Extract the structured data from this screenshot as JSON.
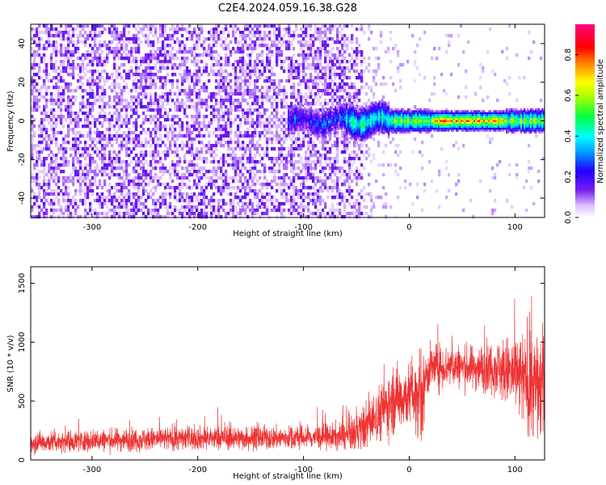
{
  "title": "C2E4.2024.059.16.38.G28",
  "chart_data": [
    {
      "type": "heatmap",
      "xlabel": "Height of straight line (km)",
      "ylabel": "Frequency (Hz)",
      "xlim": [
        -358,
        128
      ],
      "ylim": [
        -50,
        50
      ],
      "xticks": [
        "-300",
        "-200",
        "-100",
        "0",
        "100"
      ],
      "xtick_values": [
        -300,
        -200,
        -100,
        0,
        100
      ],
      "yticks": [
        "-40",
        "-20",
        "0",
        "20",
        "40"
      ],
      "ytick_values": [
        -40,
        -20,
        0,
        20,
        40
      ],
      "colorbar": {
        "label": "Normalized spectral amplitude",
        "range": [
          0,
          0.95
        ],
        "ticks": [
          "0.0",
          "0.2",
          "0.4",
          "0.6",
          "0.8"
        ],
        "tick_values": [
          0,
          0.2,
          0.4,
          0.6,
          0.8
        ],
        "colormap": "rainbow (white → violet → blue → cyan → green → yellow → red → magenta)"
      },
      "features": [
        {
          "kind": "noise",
          "x_range": [
            -358,
            -50
          ],
          "y_range": [
            -50,
            50
          ],
          "amplitude": 0.1
        },
        {
          "kind": "noise_fading",
          "x_range": [
            -50,
            0
          ],
          "y_range": [
            -50,
            50
          ],
          "amplitude": 0.05
        },
        {
          "kind": "signal_line",
          "x_range": [
            -110,
            128
          ],
          "frequency": 0,
          "amplitude_peak": 0.9
        }
      ],
      "grid": false,
      "legend": "none"
    },
    {
      "type": "line",
      "xlabel": "Height of straight line (km)",
      "ylabel": "SNR (10 * v/v)",
      "xlim": [
        -358,
        128
      ],
      "ylim": [
        0,
        1640
      ],
      "xticks": [
        "-300",
        "-200",
        "-100",
        "0",
        "100"
      ],
      "xtick_values": [
        -300,
        -200,
        -100,
        0,
        100
      ],
      "yticks": [
        "0",
        "500",
        "1000",
        "1500"
      ],
      "ytick_values": [
        0,
        500,
        1000,
        1500
      ],
      "series": [
        {
          "color": "#ee3333",
          "envelope_x": [
            -358,
            -300,
            -250,
            -200,
            -150,
            -100,
            -60,
            -45,
            -30,
            -15,
            0,
            10,
            20,
            40,
            60,
            80,
            100,
            115,
            128
          ],
          "envelope_center": [
            150,
            165,
            175,
            185,
            185,
            190,
            200,
            260,
            380,
            520,
            550,
            620,
            780,
            800,
            780,
            790,
            720,
            650,
            600
          ],
          "envelope_spread": [
            100,
            100,
            110,
            110,
            110,
            110,
            130,
            200,
            250,
            320,
            300,
            250,
            220,
            200,
            200,
            250,
            380,
            500,
            550
          ]
        }
      ],
      "grid": false,
      "legend": "none"
    }
  ]
}
